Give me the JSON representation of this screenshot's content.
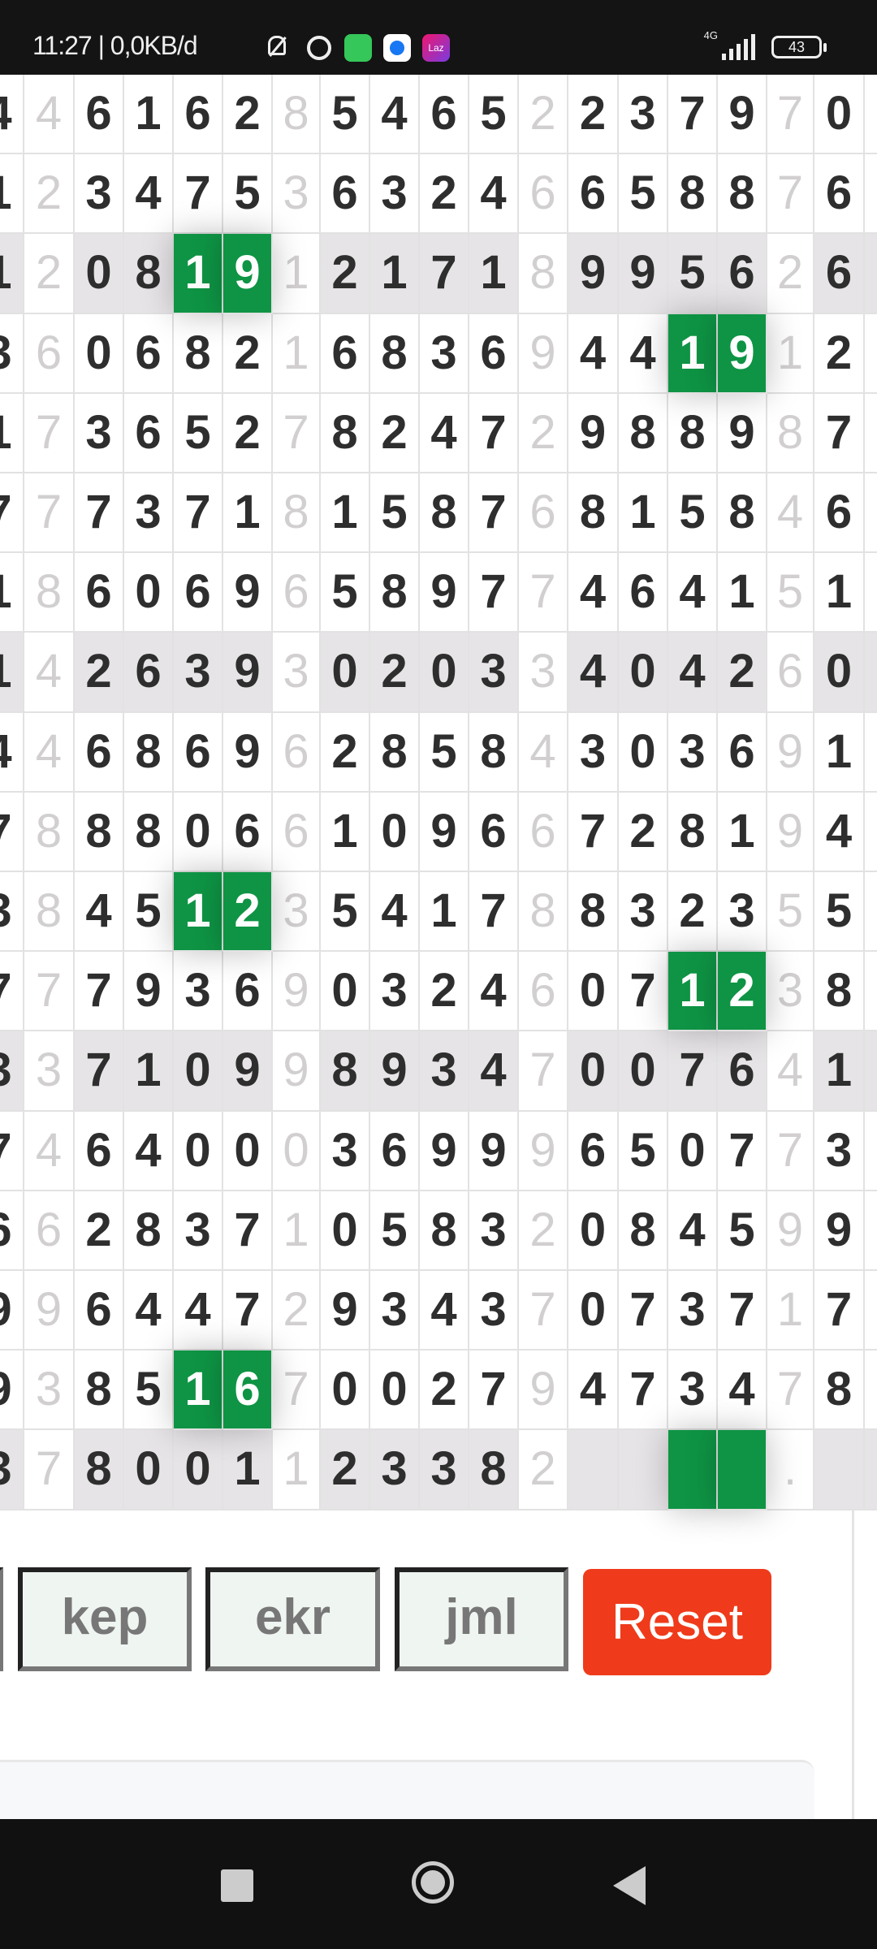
{
  "status_bar": {
    "text": "11:27 | 0,0KB/d",
    "icons": [
      "vibrate-mute-icon",
      "alarm-icon",
      "whatsapp-icon",
      "messenger-icon",
      "lazada-icon"
    ],
    "lazada_label": "Laz",
    "network": "4G",
    "battery": "43"
  },
  "colors": {
    "highlight": "#0e9444",
    "reset": "#ef3b1b",
    "shade": "#e7e4e7"
  },
  "grid": {
    "light_columns": [
      1,
      6,
      11,
      16
    ],
    "shaded_rows": [
      2,
      7,
      12,
      17
    ],
    "rows": [
      [
        "4",
        "4",
        "6",
        "1",
        "6",
        "2",
        "8",
        "5",
        "4",
        "6",
        "5",
        "2",
        "2",
        "3",
        "7",
        "9",
        "7",
        "0"
      ],
      [
        "1",
        "2",
        "3",
        "4",
        "7",
        "5",
        "3",
        "6",
        "3",
        "2",
        "4",
        "6",
        "6",
        "5",
        "8",
        "8",
        "7",
        "6"
      ],
      [
        "1",
        "2",
        "0",
        "8",
        "1",
        "9",
        "1",
        "2",
        "1",
        "7",
        "1",
        "8",
        "9",
        "9",
        "5",
        "6",
        "2",
        "6"
      ],
      [
        "3",
        "6",
        "0",
        "6",
        "8",
        "2",
        "1",
        "6",
        "8",
        "3",
        "6",
        "9",
        "4",
        "4",
        "1",
        "9",
        "1",
        "2"
      ],
      [
        "1",
        "7",
        "3",
        "6",
        "5",
        "2",
        "7",
        "8",
        "2",
        "4",
        "7",
        "2",
        "9",
        "8",
        "8",
        "9",
        "8",
        "7"
      ],
      [
        "7",
        "7",
        "7",
        "3",
        "7",
        "1",
        "8",
        "1",
        "5",
        "8",
        "7",
        "6",
        "8",
        "1",
        "5",
        "8",
        "4",
        "6"
      ],
      [
        "1",
        "8",
        "6",
        "0",
        "6",
        "9",
        "6",
        "5",
        "8",
        "9",
        "7",
        "7",
        "4",
        "6",
        "4",
        "1",
        "5",
        "1"
      ],
      [
        "1",
        "4",
        "2",
        "6",
        "3",
        "9",
        "3",
        "0",
        "2",
        "0",
        "3",
        "3",
        "4",
        "0",
        "4",
        "2",
        "6",
        "0"
      ],
      [
        "4",
        "4",
        "6",
        "8",
        "6",
        "9",
        "6",
        "2",
        "8",
        "5",
        "8",
        "4",
        "3",
        "0",
        "3",
        "6",
        "9",
        "1"
      ],
      [
        "7",
        "8",
        "8",
        "8",
        "0",
        "6",
        "6",
        "1",
        "0",
        "9",
        "6",
        "6",
        "7",
        "2",
        "8",
        "1",
        "9",
        "4"
      ],
      [
        "3",
        "8",
        "4",
        "5",
        "1",
        "2",
        "3",
        "5",
        "4",
        "1",
        "7",
        "8",
        "8",
        "3",
        "2",
        "3",
        "5",
        "5"
      ],
      [
        "7",
        "7",
        "7",
        "9",
        "3",
        "6",
        "9",
        "0",
        "3",
        "2",
        "4",
        "6",
        "0",
        "7",
        "1",
        "2",
        "3",
        "8"
      ],
      [
        "3",
        "3",
        "7",
        "1",
        "0",
        "9",
        "9",
        "8",
        "9",
        "3",
        "4",
        "7",
        "0",
        "0",
        "7",
        "6",
        "4",
        "1"
      ],
      [
        "7",
        "4",
        "6",
        "4",
        "0",
        "0",
        "0",
        "3",
        "6",
        "9",
        "9",
        "9",
        "6",
        "5",
        "0",
        "7",
        "7",
        "3"
      ],
      [
        "6",
        "6",
        "2",
        "8",
        "3",
        "7",
        "1",
        "0",
        "5",
        "8",
        "3",
        "2",
        "0",
        "8",
        "4",
        "5",
        "9",
        "9"
      ],
      [
        "9",
        "9",
        "6",
        "4",
        "4",
        "7",
        "2",
        "9",
        "3",
        "4",
        "3",
        "7",
        "0",
        "7",
        "3",
        "7",
        "1",
        "7"
      ],
      [
        "9",
        "3",
        "8",
        "5",
        "1",
        "6",
        "7",
        "0",
        "0",
        "2",
        "7",
        "9",
        "4",
        "7",
        "3",
        "4",
        "7",
        "8"
      ],
      [
        "3",
        "7",
        "8",
        "0",
        "0",
        "1",
        "1",
        "2",
        "3",
        "3",
        "8",
        "2",
        "",
        "",
        "",
        "",
        ".",
        ""
      ]
    ],
    "highlights": [
      [
        2,
        4
      ],
      [
        2,
        5
      ],
      [
        3,
        14
      ],
      [
        3,
        15
      ],
      [
        10,
        4
      ],
      [
        10,
        5
      ],
      [
        11,
        14
      ],
      [
        11,
        15
      ],
      [
        16,
        4
      ],
      [
        16,
        5
      ],
      [
        17,
        14
      ],
      [
        17,
        15
      ]
    ]
  },
  "buttons": {
    "kep": "kep",
    "ekr": "ekr",
    "jml": "jml",
    "reset": "Reset"
  }
}
